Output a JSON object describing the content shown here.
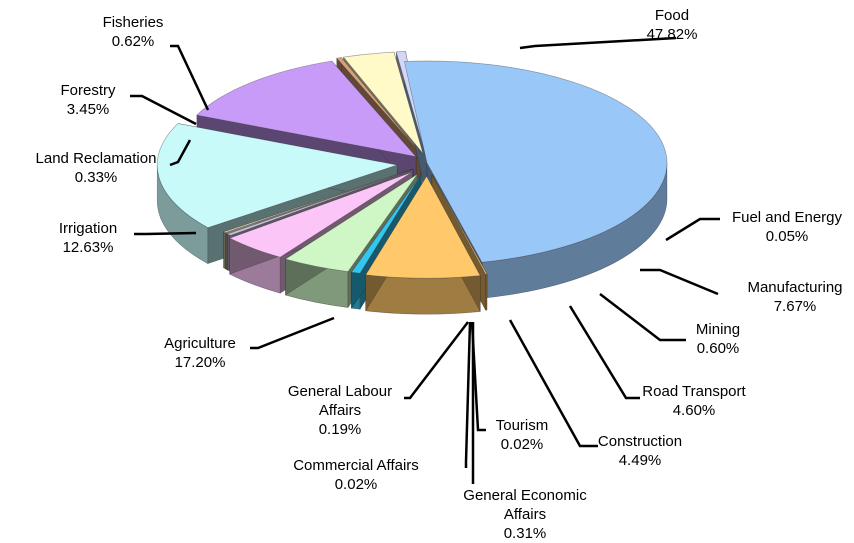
{
  "chart_data": {
    "type": "pie",
    "title": "",
    "slices": [
      {
        "name": "Food",
        "value": 47.82,
        "label": "47.82%",
        "color": "#99C8F8"
      },
      {
        "name": "Fuel and Energy",
        "value": 0.05,
        "label": "0.05%",
        "color": "#FFC86B"
      },
      {
        "name": "Manufacturing",
        "value": 7.67,
        "label": "7.67%",
        "color": "#FFC86B"
      },
      {
        "name": "Mining",
        "value": 0.6,
        "label": "0.60%",
        "color": "#33C6F0"
      },
      {
        "name": "Road Transport",
        "value": 4.6,
        "label": "4.60%",
        "color": "#CFF7C5"
      },
      {
        "name": "Construction",
        "value": 4.49,
        "label": "4.49%",
        "color": "#FBC5F8"
      },
      {
        "name": "General Economic Affairs",
        "value": 0.31,
        "label": "0.31%",
        "color": "#C9BFD8"
      },
      {
        "name": "Tourism",
        "value": 0.02,
        "label": "0.02%",
        "color": "#D8D8D8"
      },
      {
        "name": "Commercial Affairs",
        "value": 0.02,
        "label": "0.02%",
        "color": "#BFC6EE"
      },
      {
        "name": "General Labour Affairs",
        "value": 0.19,
        "label": "0.19%",
        "color": "#E6D9A6"
      },
      {
        "name": "Agriculture",
        "value": 17.2,
        "label": "17.20%",
        "color": "#C8FAFA"
      },
      {
        "name": "Irrigation",
        "value": 12.63,
        "label": "12.63%",
        "color": "#C89BF8"
      },
      {
        "name": "Land Reclamation",
        "value": 0.33,
        "label": "0.33%",
        "color": "#D8A07A"
      },
      {
        "name": "Forestry",
        "value": 3.45,
        "label": "3.45%",
        "color": "#FFFAC8"
      },
      {
        "name": "Fisheries",
        "value": 0.62,
        "label": "0.62%",
        "color": "#D5D5F8"
      }
    ],
    "legend": "none",
    "style": "3d-exploded-pie"
  }
}
